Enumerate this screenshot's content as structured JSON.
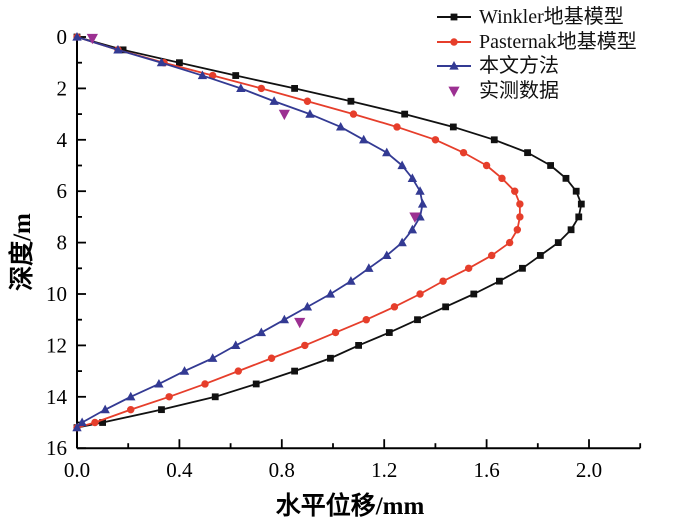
{
  "chart_data": {
    "type": "line",
    "title": "",
    "xlabel": "水平位移/mm",
    "ylabel": "深度/m",
    "xlim": [
      0,
      2.2
    ],
    "ylim": [
      0,
      16
    ],
    "y_axis_inverted": true,
    "grid": false,
    "legend_position": "top-right",
    "axis_color": "#000000",
    "x_ticks_major": [
      0.0,
      0.4,
      0.8,
      1.2,
      1.6,
      2.0
    ],
    "x_ticks_minor": [
      0.2,
      0.6,
      1.0,
      1.4,
      1.8,
      2.2
    ],
    "y_ticks_major": [
      0,
      2,
      4,
      6,
      8,
      10,
      12,
      14,
      16
    ],
    "y_ticks_minor": [
      1,
      3,
      5,
      7,
      9,
      11,
      13,
      15
    ],
    "depths": [
      0,
      0.5,
      1,
      1.5,
      2,
      2.5,
      3,
      3.5,
      4,
      4.5,
      5,
      5.5,
      6,
      6.5,
      7,
      7.5,
      8,
      8.5,
      9,
      9.5,
      10,
      10.5,
      11,
      11.5,
      12,
      12.5,
      13,
      13.5,
      14,
      14.5,
      15,
      15.2
    ],
    "series": [
      {
        "name": "Winkler地基模型",
        "color": "#111111",
        "marker": "square",
        "line": true,
        "values": [
          0,
          0.18,
          0.4,
          0.62,
          0.85,
          1.07,
          1.28,
          1.47,
          1.63,
          1.76,
          1.85,
          1.91,
          1.95,
          1.97,
          1.96,
          1.93,
          1.88,
          1.81,
          1.74,
          1.65,
          1.55,
          1.44,
          1.33,
          1.22,
          1.1,
          0.99,
          0.85,
          0.7,
          0.54,
          0.33,
          0.1,
          0
        ]
      },
      {
        "name": "Pasternak地基模型",
        "color": "#e63e2b",
        "marker": "circle",
        "line": true,
        "values": [
          0,
          0.16,
          0.34,
          0.53,
          0.72,
          0.9,
          1.08,
          1.25,
          1.4,
          1.51,
          1.6,
          1.66,
          1.71,
          1.73,
          1.73,
          1.72,
          1.69,
          1.62,
          1.53,
          1.43,
          1.34,
          1.24,
          1.13,
          1.01,
          0.89,
          0.76,
          0.63,
          0.5,
          0.36,
          0.21,
          0.07,
          0
        ]
      },
      {
        "name": "本文方法",
        "color": "#333a93",
        "marker": "triangle-up",
        "line": true,
        "values": [
          0,
          0.16,
          0.33,
          0.49,
          0.64,
          0.77,
          0.91,
          1.03,
          1.12,
          1.21,
          1.27,
          1.31,
          1.34,
          1.35,
          1.34,
          1.31,
          1.27,
          1.21,
          1.14,
          1.07,
          0.99,
          0.9,
          0.81,
          0.72,
          0.62,
          0.53,
          0.42,
          0.32,
          0.21,
          0.11,
          0.02,
          0
        ]
      },
      {
        "name": "实测数据",
        "color": "#9c3092",
        "marker": "triangle-down",
        "line": false,
        "points": [
          [
            0.06,
            0.05
          ],
          [
            0.81,
            3.0
          ],
          [
            1.32,
            7.0
          ],
          [
            0.87,
            11.1
          ]
        ]
      }
    ]
  }
}
